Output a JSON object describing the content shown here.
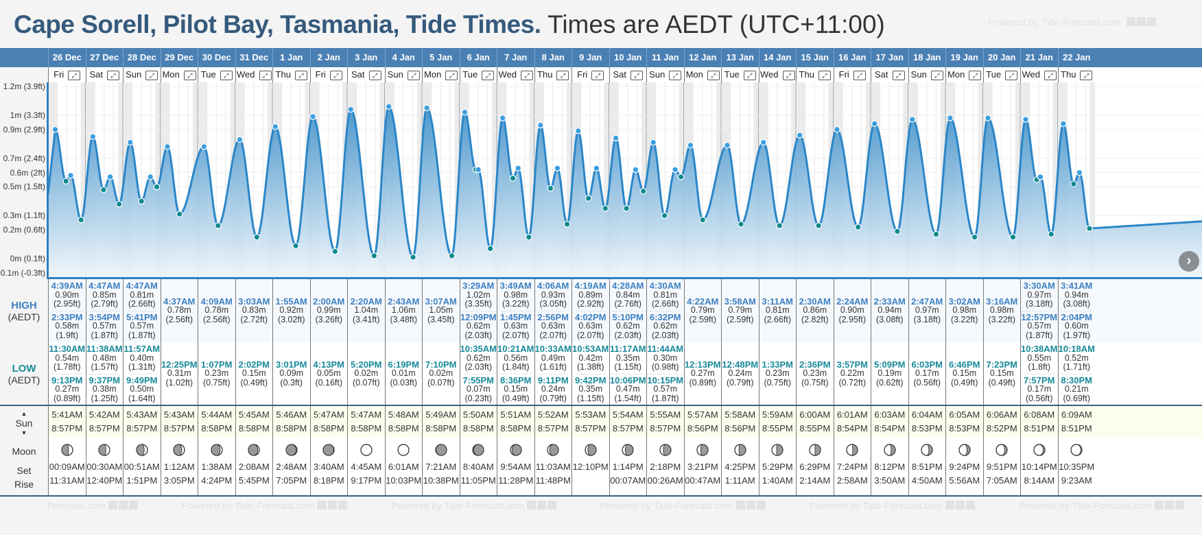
{
  "header": {
    "title_location": "Cape Sorell, Pilot Bay, Tasmania, Tide Times.",
    "title_timezone": "Times are AEDT (UTC+11:00)",
    "powered_by": "Powered by Tide-Forecast.com"
  },
  "labels": {
    "high": "HIGH",
    "low": "LOW",
    "tz": "(AEDT)",
    "sun": "Sun",
    "moon": "Moon",
    "set": "Set",
    "rise": "Rise",
    "sun_up_icon": "▲",
    "sun_down_icon": "▼",
    "scroll_next": "›"
  },
  "chart_data": {
    "type": "area",
    "title": "",
    "xlabel": "",
    "ylabel": "",
    "y_ticks": [
      "1.2m (3.9ft)",
      "1m (3.3ft)",
      "0.9m (2.9ft)",
      "0.7m (2.4ft)",
      "0.6m (2ft)",
      "0.5m (1.5ft)",
      "0.3m (1.1ft)",
      "0.2m (0.6ft)",
      "0m (0.1ft)",
      "-0.1m (-0.3ft)"
    ],
    "y_tick_values": [
      1.2,
      1.0,
      0.9,
      0.7,
      0.6,
      0.5,
      0.3,
      0.2,
      0.0,
      -0.1
    ],
    "ylim": [
      -0.1,
      1.2
    ],
    "colors": {
      "line": "#2a86c8",
      "high_dot": "#3a9ee0",
      "low_dot": "#0f8a8e",
      "fill_top": "#3c8fc9",
      "fill_bottom": "#eef5fb",
      "night": "#ebebeb"
    }
  },
  "days": [
    {
      "date": "26 Dec",
      "dow": "Fri",
      "high": [
        [
          "4:39AM",
          "0.90m",
          "(2.95ft)"
        ],
        [
          "2:33PM",
          "0.58m",
          "(1.9ft)"
        ]
      ],
      "low": [
        [
          "11:30AM",
          "0.54m",
          "(1.78ft)"
        ],
        [
          "9:13PM",
          "0.27m",
          "(0.89ft)"
        ]
      ],
      "sunrise": "5:41AM",
      "sunset": "8:57PM",
      "moon_set": "00:09AM",
      "moon_rise": "11:31AM",
      "moon_phase": 0.62
    },
    {
      "date": "27 Dec",
      "dow": "Sat",
      "high": [
        [
          "4:47AM",
          "0.85m",
          "(2.79ft)"
        ],
        [
          "3:54PM",
          "0.57m",
          "(1.87ft)"
        ]
      ],
      "low": [
        [
          "11:38AM",
          "0.48m",
          "(1.57ft)"
        ],
        [
          "9:37PM",
          "0.38m",
          "(1.25ft)"
        ]
      ],
      "sunrise": "5:42AM",
      "sunset": "8:57PM",
      "moon_set": "00:30AM",
      "moon_rise": "12:40PM",
      "moon_phase": 0.65
    },
    {
      "date": "28 Dec",
      "dow": "Sun",
      "high": [
        [
          "4:47AM",
          "0.81m",
          "(2.66ft)"
        ],
        [
          "5:41PM",
          "0.57m",
          "(1.87ft)"
        ]
      ],
      "low": [
        [
          "11:57AM",
          "0.40m",
          "(1.31ft)"
        ],
        [
          "9:49PM",
          "0.50m",
          "(1.64ft)"
        ]
      ],
      "sunrise": "5:43AM",
      "sunset": "8:57PM",
      "moon_set": "00:51AM",
      "moon_rise": "1:51PM",
      "moon_phase": 0.7
    },
    {
      "date": "29 Dec",
      "dow": "Mon",
      "high": [
        [
          "4:37AM",
          "0.78m",
          "(2.56ft)"
        ]
      ],
      "low": [
        [
          "12:25PM",
          "0.31m",
          "(1.02ft)"
        ]
      ],
      "sunrise": "5:43AM",
      "sunset": "8:57PM",
      "moon_set": "1:12AM",
      "moon_rise": "3:05PM",
      "moon_phase": 0.75
    },
    {
      "date": "30 Dec",
      "dow": "Tue",
      "high": [
        [
          "4:09AM",
          "0.78m",
          "(2.56ft)"
        ]
      ],
      "low": [
        [
          "1:07PM",
          "0.23m",
          "(0.75ft)"
        ]
      ],
      "sunrise": "5:44AM",
      "sunset": "8:58PM",
      "moon_set": "1:38AM",
      "moon_rise": "4:24PM",
      "moon_phase": 0.8
    },
    {
      "date": "31 Dec",
      "dow": "Wed",
      "high": [
        [
          "3:03AM",
          "0.83m",
          "(2.72ft)"
        ]
      ],
      "low": [
        [
          "2:02PM",
          "0.15m",
          "(0.49ft)"
        ]
      ],
      "sunrise": "5:45AM",
      "sunset": "8:58PM",
      "moon_set": "2:08AM",
      "moon_rise": "5:45PM",
      "moon_phase": 0.86
    },
    {
      "date": "1 Jan",
      "dow": "Thu",
      "high": [
        [
          "1:55AM",
          "0.92m",
          "(3.02ft)"
        ]
      ],
      "low": [
        [
          "3:01PM",
          "0.09m",
          "(0.3ft)"
        ]
      ],
      "sunrise": "5:46AM",
      "sunset": "8:58PM",
      "moon_set": "2:48AM",
      "moon_rise": "7:05PM",
      "moon_phase": 0.92
    },
    {
      "date": "2 Jan",
      "dow": "Fri",
      "high": [
        [
          "2:00AM",
          "0.99m",
          "(3.26ft)"
        ]
      ],
      "low": [
        [
          "4:13PM",
          "0.05m",
          "(0.16ft)"
        ]
      ],
      "sunrise": "5:47AM",
      "sunset": "8:58PM",
      "moon_set": "3:40AM",
      "moon_rise": "8:18PM",
      "moon_phase": 0.97
    },
    {
      "date": "3 Jan",
      "dow": "Sat",
      "high": [
        [
          "2:20AM",
          "1.04m",
          "(3.41ft)"
        ]
      ],
      "low": [
        [
          "5:20PM",
          "0.02m",
          "(0.07ft)"
        ]
      ],
      "sunrise": "5:47AM",
      "sunset": "8:58PM",
      "moon_set": "4:45AM",
      "moon_rise": "9:17PM",
      "moon_phase": 1.0
    },
    {
      "date": "4 Jan",
      "dow": "Sun",
      "high": [
        [
          "2:43AM",
          "1.06m",
          "(3.48ft)"
        ]
      ],
      "low": [
        [
          "6:19PM",
          "0.01m",
          "(0.03ft)"
        ]
      ],
      "sunrise": "5:48AM",
      "sunset": "8:58PM",
      "moon_set": "6:01AM",
      "moon_rise": "10:03PM",
      "moon_phase": 1.0
    },
    {
      "date": "5 Jan",
      "dow": "Mon",
      "high": [
        [
          "3:07AM",
          "1.05m",
          "(3.45ft)"
        ]
      ],
      "low": [
        [
          "7:10PM",
          "0.02m",
          "(0.07ft)"
        ]
      ],
      "sunrise": "5:49AM",
      "sunset": "8:58PM",
      "moon_set": "7:21AM",
      "moon_rise": "10:38PM",
      "moon_phase": 1.03
    },
    {
      "date": "6 Jan",
      "dow": "Tue",
      "high": [
        [
          "3:29AM",
          "1.02m",
          "(3.35ft)"
        ],
        [
          "12:09PM",
          "0.62m",
          "(2.03ft)"
        ]
      ],
      "low": [
        [
          "10:35AM",
          "0.62m",
          "(2.03ft)"
        ],
        [
          "7:55PM",
          "0.07m",
          "(0.23ft)"
        ]
      ],
      "sunrise": "5:50AM",
      "sunset": "8:58PM",
      "moon_set": "8:40AM",
      "moon_rise": "11:05PM",
      "moon_phase": 1.08
    },
    {
      "date": "7 Jan",
      "dow": "Wed",
      "high": [
        [
          "3:49AM",
          "0.98m",
          "(3.22ft)"
        ],
        [
          "1:45PM",
          "0.63m",
          "(2.07ft)"
        ]
      ],
      "low": [
        [
          "10:21AM",
          "0.56m",
          "(1.84ft)"
        ],
        [
          "8:36PM",
          "0.15m",
          "(0.49ft)"
        ]
      ],
      "sunrise": "5:51AM",
      "sunset": "8:58PM",
      "moon_set": "9:54AM",
      "moon_rise": "11:28PM",
      "moon_phase": 1.14
    },
    {
      "date": "8 Jan",
      "dow": "Thu",
      "high": [
        [
          "4:06AM",
          "0.93m",
          "(3.05ft)"
        ],
        [
          "2:56PM",
          "0.63m",
          "(2.07ft)"
        ]
      ],
      "low": [
        [
          "10:33AM",
          "0.49m",
          "(1.61ft)"
        ],
        [
          "9:11PM",
          "0.24m",
          "(0.79ft)"
        ]
      ],
      "sunrise": "5:52AM",
      "sunset": "8:57PM",
      "moon_set": "11:03AM",
      "moon_rise": "11:48PM",
      "moon_phase": 1.2
    },
    {
      "date": "9 Jan",
      "dow": "Fri",
      "high": [
        [
          "4:19AM",
          "0.89m",
          "(2.92ft)"
        ],
        [
          "4:02PM",
          "0.63m",
          "(2.07ft)"
        ]
      ],
      "low": [
        [
          "10:53AM",
          "0.42m",
          "(1.38ft)"
        ],
        [
          "9:42PM",
          "0.35m",
          "(1.15ft)"
        ]
      ],
      "sunrise": "5:53AM",
      "sunset": "8:57PM",
      "moon_set": "12:10PM",
      "moon_rise": "",
      "moon_phase": 1.24
    },
    {
      "date": "10 Jan",
      "dow": "Sat",
      "high": [
        [
          "4:28AM",
          "0.84m",
          "(2.76ft)"
        ],
        [
          "5:10PM",
          "0.62m",
          "(2.03ft)"
        ]
      ],
      "low": [
        [
          "11:17AM",
          "0.35m",
          "(1.15ft)"
        ],
        [
          "10:06PM",
          "0.47m",
          "(1.54ft)"
        ]
      ],
      "sunrise": "5:54AM",
      "sunset": "8:57PM",
      "moon_set": "1:14PM",
      "moon_rise": "00:07AM",
      "moon_phase": 1.27
    },
    {
      "date": "11 Jan",
      "dow": "Sun",
      "high": [
        [
          "4:30AM",
          "0.81m",
          "(2.66ft)"
        ],
        [
          "6:32PM",
          "0.62m",
          "(2.03ft)"
        ]
      ],
      "low": [
        [
          "11:44AM",
          "0.30m",
          "(0.98ft)"
        ],
        [
          "10:15PM",
          "0.57m",
          "(1.87ft)"
        ]
      ],
      "sunrise": "5:55AM",
      "sunset": "8:57PM",
      "moon_set": "2:18PM",
      "moon_rise": "00:26AM",
      "moon_phase": 1.3
    },
    {
      "date": "12 Jan",
      "dow": "Mon",
      "high": [
        [
          "4:22AM",
          "0.79m",
          "(2.59ft)"
        ]
      ],
      "low": [
        [
          "12:13PM",
          "0.27m",
          "(0.89ft)"
        ]
      ],
      "sunrise": "5:57AM",
      "sunset": "8:56PM",
      "moon_set": "3:21PM",
      "moon_rise": "00:47AM",
      "moon_phase": 1.33
    },
    {
      "date": "13 Jan",
      "dow": "Tue",
      "high": [
        [
          "3:58AM",
          "0.79m",
          "(2.59ft)"
        ]
      ],
      "low": [
        [
          "12:48PM",
          "0.24m",
          "(0.79ft)"
        ]
      ],
      "sunrise": "5:58AM",
      "sunset": "8:56PM",
      "moon_set": "4:25PM",
      "moon_rise": "1:11AM",
      "moon_phase": 1.38
    },
    {
      "date": "14 Jan",
      "dow": "Wed",
      "high": [
        [
          "3:11AM",
          "0.81m",
          "(2.66ft)"
        ]
      ],
      "low": [
        [
          "1:33PM",
          "0.23m",
          "(0.75ft)"
        ]
      ],
      "sunrise": "5:59AM",
      "sunset": "8:55PM",
      "moon_set": "5:29PM",
      "moon_rise": "1:40AM",
      "moon_phase": 1.44
    },
    {
      "date": "15 Jan",
      "dow": "Thu",
      "high": [
        [
          "2:30AM",
          "0.86m",
          "(2.82ft)"
        ]
      ],
      "low": [
        [
          "2:36PM",
          "0.23m",
          "(0.75ft)"
        ]
      ],
      "sunrise": "6:00AM",
      "sunset": "8:55PM",
      "moon_set": "6:29PM",
      "moon_rise": "2:14AM",
      "moon_phase": 1.5
    },
    {
      "date": "16 Jan",
      "dow": "Fri",
      "high": [
        [
          "2:24AM",
          "0.90m",
          "(2.95ft)"
        ]
      ],
      "low": [
        [
          "3:57PM",
          "0.22m",
          "(0.72ft)"
        ]
      ],
      "sunrise": "6:01AM",
      "sunset": "8:54PM",
      "moon_set": "7:24PM",
      "moon_rise": "2:58AM",
      "moon_phase": 1.56
    },
    {
      "date": "17 Jan",
      "dow": "Sat",
      "high": [
        [
          "2:33AM",
          "0.94m",
          "(3.08ft)"
        ]
      ],
      "low": [
        [
          "5:09PM",
          "0.19m",
          "(0.62ft)"
        ]
      ],
      "sunrise": "6:03AM",
      "sunset": "8:54PM",
      "moon_set": "8:12PM",
      "moon_rise": "3:50AM",
      "moon_phase": 1.62
    },
    {
      "date": "18 Jan",
      "dow": "Sun",
      "high": [
        [
          "2:47AM",
          "0.97m",
          "(3.18ft)"
        ]
      ],
      "low": [
        [
          "6:03PM",
          "0.17m",
          "(0.56ft)"
        ]
      ],
      "sunrise": "6:04AM",
      "sunset": "8:53PM",
      "moon_set": "8:51PM",
      "moon_rise": "4:50AM",
      "moon_phase": 1.68
    },
    {
      "date": "19 Jan",
      "dow": "Mon",
      "high": [
        [
          "3:02AM",
          "0.98m",
          "(3.22ft)"
        ]
      ],
      "low": [
        [
          "6:46PM",
          "0.15m",
          "(0.49ft)"
        ]
      ],
      "sunrise": "6:05AM",
      "sunset": "8:53PM",
      "moon_set": "9:24PM",
      "moon_rise": "5:56AM",
      "moon_phase": 1.72
    },
    {
      "date": "20 Jan",
      "dow": "Tue",
      "high": [
        [
          "3:16AM",
          "0.98m",
          "(3.22ft)"
        ]
      ],
      "low": [
        [
          "7:23PM",
          "0.15m",
          "(0.49ft)"
        ]
      ],
      "sunrise": "6:06AM",
      "sunset": "8:52PM",
      "moon_set": "9:51PM",
      "moon_rise": "7:05AM",
      "moon_phase": 1.78
    },
    {
      "date": "21 Jan",
      "dow": "Wed",
      "high": [
        [
          "3:30AM",
          "0.97m",
          "(3.18ft)"
        ],
        [
          "12:57PM",
          "0.57m",
          "(1.87ft)"
        ]
      ],
      "low": [
        [
          "10:38AM",
          "0.55m",
          "(1.8ft)"
        ],
        [
          "7:57PM",
          "0.17m",
          "(0.56ft)"
        ]
      ],
      "sunrise": "6:08AM",
      "sunset": "8:51PM",
      "moon_set": "10:14PM",
      "moon_rise": "8:14AM",
      "moon_phase": 1.84
    },
    {
      "date": "22 Jan",
      "dow": "Thu",
      "high": [
        [
          "3:41AM",
          "0.94m",
          "(3.08ft)"
        ],
        [
          "2:04PM",
          "0.60m",
          "(1.97ft)"
        ]
      ],
      "low": [
        [
          "10:18AM",
          "0.52m",
          "(1.71ft)"
        ],
        [
          "8:30PM",
          "0.21m",
          "(0.69ft)"
        ]
      ],
      "sunrise": "6:09AM",
      "sunset": "8:51PM",
      "moon_set": "10:35PM",
      "moon_rise": "9:23AM",
      "moon_phase": 1.9
    }
  ]
}
